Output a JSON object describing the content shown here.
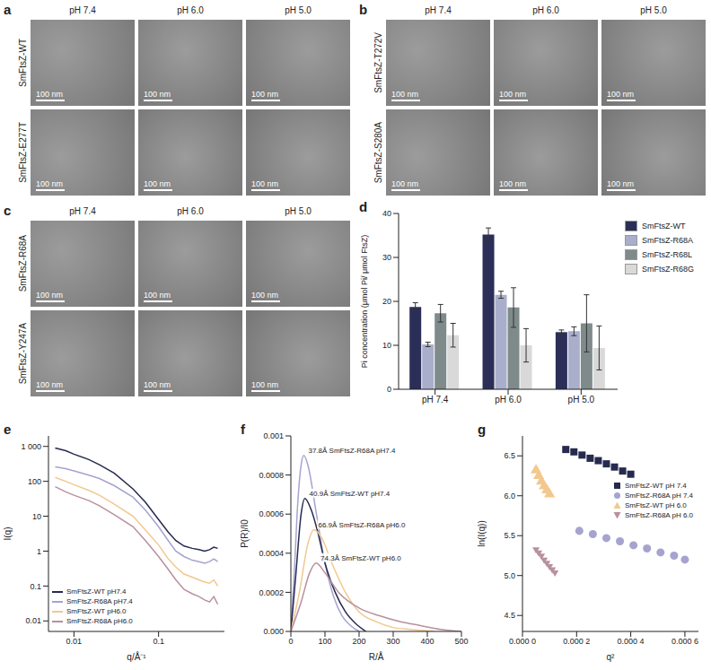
{
  "micrographs": [
    {
      "panel": "a",
      "columns": [
        "pH 7.4",
        "pH 6.0",
        "pH 5.0"
      ],
      "rows": [
        "SmFtsZ-WT",
        "SmFtsZ-E277T"
      ],
      "scale_bar": "100 nm"
    },
    {
      "panel": "b",
      "columns": [
        "pH 7.4",
        "pH 6.0",
        "pH 5.0"
      ],
      "rows": [
        "SmFtsZ-T272V",
        "SmFtsZ-S280A"
      ],
      "scale_bar": "100 nm"
    },
    {
      "panel": "c",
      "columns": [
        "pH 7.4",
        "pH 6.0",
        "pH 5.0"
      ],
      "rows": [
        "SmFtsZ-R68A",
        "SmFtsZ-Y247A"
      ],
      "scale_bar": "100 nm"
    }
  ],
  "chart_data": [
    {
      "panel": "d",
      "type": "bar",
      "y_label": "Pi concentration (μmol Pi/ μmol FtsZ)",
      "categories": [
        "pH 7.4",
        "pH 6.0",
        "pH 5.0"
      ],
      "series": [
        {
          "name": "SmFtsZ-WT",
          "color": "#2b2f57",
          "values": [
            18.7,
            35.2,
            13.0
          ],
          "errors": [
            1.0,
            1.5,
            0.5
          ]
        },
        {
          "name": "SmFtsZ-R68A",
          "color": "#a9aecb",
          "values": [
            10.2,
            21.5,
            13.2
          ],
          "errors": [
            0.5,
            0.8,
            1.0
          ]
        },
        {
          "name": "SmFtsZ-R68L",
          "color": "#7f8b8a",
          "values": [
            17.3,
            18.6,
            15.0
          ],
          "errors": [
            2.0,
            4.5,
            6.5
          ]
        },
        {
          "name": "SmFtsZ-R68G",
          "color": "#d9d9d9",
          "values": [
            12.3,
            10.0,
            9.4
          ],
          "errors": [
            2.7,
            3.8,
            5.0
          ]
        }
      ],
      "ylim": [
        0,
        40
      ],
      "yticks": [
        0,
        10,
        20,
        30,
        40
      ],
      "legend": "right"
    },
    {
      "panel": "e",
      "type": "line",
      "x_label": "q/Å⁻¹",
      "y_label": "I(q)",
      "log": true,
      "x": [
        0.006,
        0.008,
        0.01,
        0.015,
        0.02,
        0.03,
        0.05,
        0.07,
        0.1,
        0.13,
        0.16,
        0.2,
        0.25,
        0.3,
        0.35,
        0.4,
        0.45,
        0.5
      ],
      "series": [
        {
          "name": "SmFtsZ-WT pH7.4",
          "color": "#262a4f",
          "values": [
            900,
            750,
            600,
            420,
            300,
            170,
            60,
            25,
            8,
            3.5,
            2,
            1.4,
            1.2,
            1.1,
            1.0,
            1.1,
            1.3,
            1.2
          ]
        },
        {
          "name": "SmFtsZ-R68A pH7.4",
          "color": "#a6a3cf",
          "values": [
            260,
            230,
            200,
            150,
            120,
            75,
            35,
            15,
            5,
            2,
            1,
            0.7,
            0.55,
            0.5,
            0.45,
            0.5,
            0.6,
            0.5
          ]
        },
        {
          "name": "SmFtsZ-WT pH6.0",
          "color": "#f2c88e",
          "values": [
            130,
            100,
            80,
            55,
            40,
            22,
            10,
            4,
            1.5,
            0.6,
            0.35,
            0.22,
            0.18,
            0.15,
            0.13,
            0.12,
            0.15,
            0.1
          ]
        },
        {
          "name": "SmFtsZ-R68A pH6.0",
          "color": "#b8909e",
          "values": [
            70,
            50,
            40,
            28,
            20,
            11,
            5,
            2,
            0.7,
            0.3,
            0.15,
            0.08,
            0.06,
            0.05,
            0.04,
            0.035,
            0.05,
            0.03
          ]
        }
      ],
      "xlim": [
        0.005,
        0.6
      ],
      "xticks": [
        0.01,
        0.1
      ],
      "ylim": [
        0.005,
        2000
      ],
      "yticks": [
        0.01,
        0.1,
        1,
        10,
        100,
        {
          "value": 1000,
          "label": "1 000"
        }
      ],
      "legend": "lower left"
    },
    {
      "panel": "f",
      "type": "line",
      "x_label": "R/Å",
      "y_label": "P(R)/I0",
      "series": [
        {
          "name": "SmFtsZ-R68A pH7.4",
          "color": "#a6a3cf",
          "annotation": "37.8Å SmFtsZ-R68A pH7.4",
          "x": [
            0,
            10,
            20,
            30,
            38,
            50,
            75,
            100,
            125,
            150,
            175,
            200
          ],
          "values": [
            0,
            0.0003,
            0.00065,
            0.00085,
            0.0009,
            0.00085,
            0.0006,
            0.00035,
            0.00018,
            8e-05,
            3e-05,
            0
          ]
        },
        {
          "name": "SmFtsZ-WT pH7.4",
          "color": "#262a4f",
          "annotation": "40.9Å SmFtsZ-WT pH7.4",
          "x": [
            0,
            15,
            30,
            41,
            60,
            80,
            100,
            130,
            160,
            190,
            220
          ],
          "values": [
            0,
            0.0003,
            0.0006,
            0.00068,
            0.00062,
            0.0005,
            0.00035,
            0.0002,
            0.0001,
            4e-05,
            0
          ]
        },
        {
          "name": "SmFtsZ-R68A pH6.0",
          "color": "#f2c88e",
          "annotation": "66.9Å SmFtsZ-R68A pH6.0",
          "x": [
            0,
            25,
            50,
            67,
            90,
            120,
            160,
            200,
            250,
            300,
            350,
            420
          ],
          "values": [
            0,
            0.0002,
            0.00045,
            0.00052,
            0.00048,
            0.00035,
            0.0002,
            0.0001,
            5e-05,
            2e-05,
            1e-05,
            0
          ]
        },
        {
          "name": "SmFtsZ-WT pH6.0",
          "color": "#b8909e",
          "annotation": "74.3Å SmFtsZ-WT pH6.0",
          "x": [
            0,
            30,
            55,
            74,
            100,
            140,
            200,
            260,
            320,
            380,
            440,
            500
          ],
          "values": [
            0,
            0.00015,
            0.0003,
            0.00035,
            0.0003,
            0.0002,
            0.00012,
            8e-05,
            5e-05,
            3e-05,
            1e-05,
            0
          ]
        }
      ],
      "xlim": [
        0,
        500
      ],
      "xticks": [
        0,
        100,
        200,
        300,
        400,
        500
      ],
      "ylim": [
        0,
        0.001
      ],
      "yticks": [
        {
          "value": 0,
          "label": "0.000"
        },
        0.0002,
        0.0004,
        0.0006,
        0.0008,
        0.001
      ]
    },
    {
      "panel": "g",
      "type": "scatter",
      "x_label": "q²",
      "y_label": "ln(I(q))",
      "series": [
        {
          "name": "SmFtsZ-WT pH 7.4",
          "color": "#262a4f",
          "marker": "square",
          "x": [
            0.00016,
            0.00019,
            0.00022,
            0.00025,
            0.00028,
            0.00031,
            0.00034,
            0.00037,
            0.0004
          ],
          "values": [
            6.58,
            6.55,
            6.51,
            6.47,
            6.44,
            6.4,
            6.36,
            6.31,
            6.27
          ]
        },
        {
          "name": "SmFtsZ-R68A pH 7.4",
          "color": "#a6a3cf",
          "marker": "circle",
          "x": [
            0.00021,
            0.00026,
            0.00031,
            0.00036,
            0.00041,
            0.00046,
            0.00051,
            0.00056,
            0.0006
          ],
          "values": [
            5.56,
            5.52,
            5.47,
            5.43,
            5.38,
            5.34,
            5.29,
            5.25,
            5.2
          ]
        },
        {
          "name": "SmFtsZ-WT pH 6.0",
          "color": "#f2c88e",
          "marker": "triangle",
          "x": [
            5e-05,
            6e-05,
            7e-05,
            8e-05,
            9e-05,
            0.0001
          ],
          "values": [
            6.32,
            6.25,
            6.18,
            6.12,
            6.07,
            6.02
          ]
        },
        {
          "name": "SmFtsZ-R68A pH 6.0",
          "color": "#b8909e",
          "marker": "triangle-down",
          "x": [
            5e-05,
            6e-05,
            7e-05,
            8e-05,
            9e-05,
            0.0001,
            0.00011,
            0.00012
          ],
          "values": [
            5.32,
            5.28,
            5.24,
            5.19,
            5.15,
            5.11,
            5.07,
            5.03
          ]
        }
      ],
      "xlim": [
        0,
        0.00065
      ],
      "xticks": [
        {
          "value": 0,
          "label": "0.000 0"
        },
        {
          "value": 0.0002,
          "label": "0.000 2"
        },
        {
          "value": 0.0004,
          "label": "0.000 4"
        },
        {
          "value": 0.0006,
          "label": "0.000 6"
        }
      ],
      "ylim": [
        4.3,
        6.75
      ],
      "yticks": [
        4.5,
        {
          "value": 5.0,
          "label": "5.0"
        },
        5.5,
        {
          "value": 6.0,
          "label": "6.0"
        },
        6.5
      ],
      "legend": "right"
    }
  ]
}
